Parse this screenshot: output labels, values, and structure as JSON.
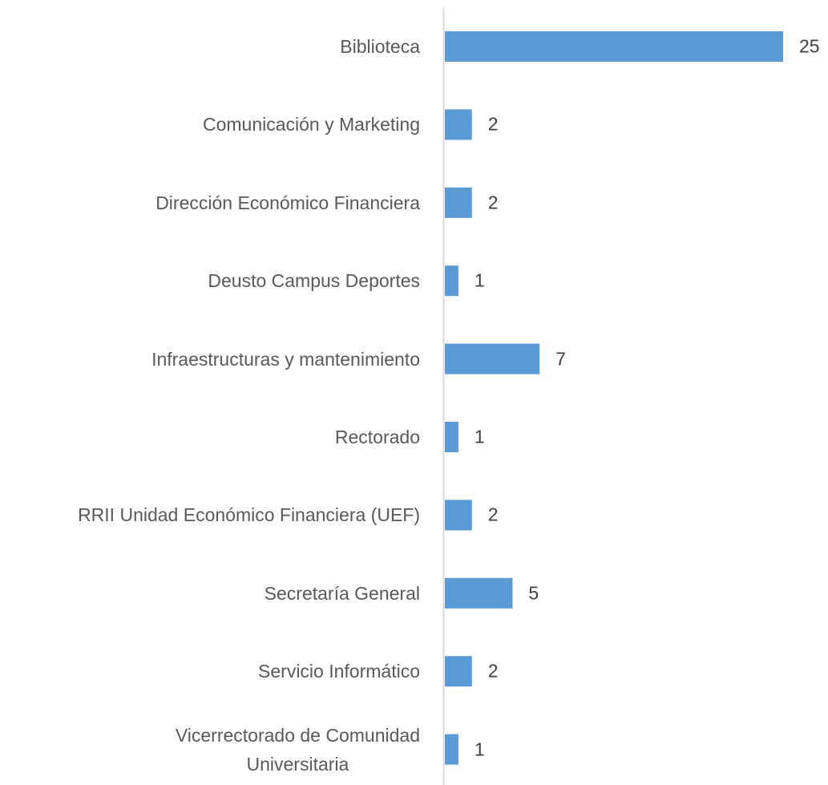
{
  "chart_data": {
    "type": "bar",
    "orientation": "horizontal",
    "categories": [
      "Biblioteca",
      "Comunicación y Marketing",
      "Dirección Económico Financiera",
      "Deusto Campus Deportes",
      "Infraestructuras y mantenimiento",
      "Rectorado",
      "RRII Unidad Económico Financiera (UEF)",
      "Secretaría General",
      "Servicio Informático",
      "Vicerrectorado de Comunidad\nUniversitaria"
    ],
    "values": [
      25,
      2,
      2,
      1,
      7,
      1,
      2,
      5,
      2,
      1
    ],
    "color": "#5b9bd5"
  }
}
